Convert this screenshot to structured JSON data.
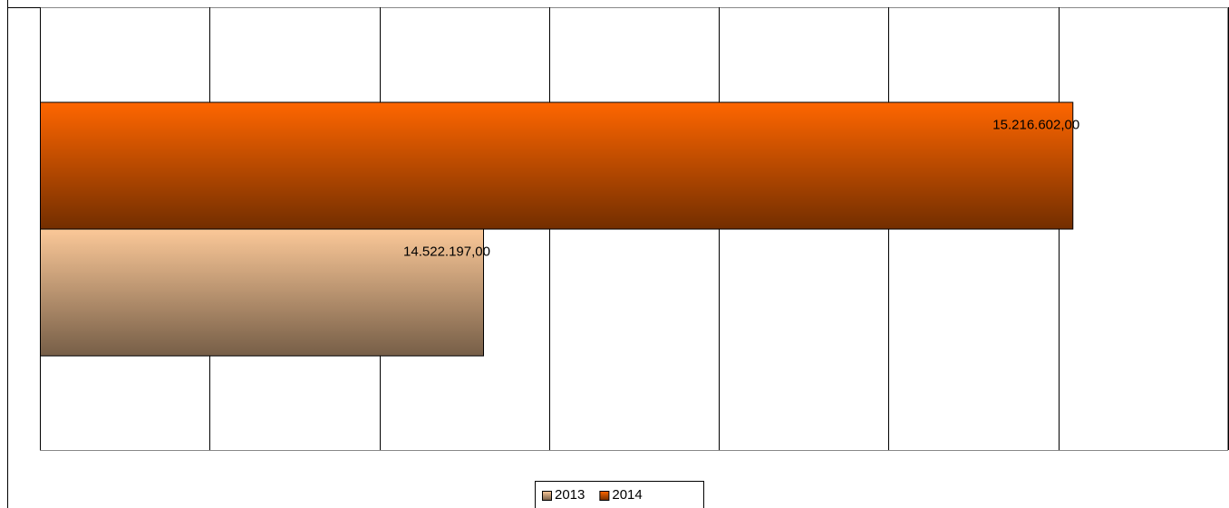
{
  "chart_data": {
    "type": "hbar",
    "categories": [
      null
    ],
    "series": [
      {
        "name": "2013",
        "color": "#fbc898",
        "values": [
          14522197
        ],
        "value_labels": [
          "14.522.197,00"
        ]
      },
      {
        "name": "2014",
        "color": "#ff6600",
        "values": [
          15216602
        ],
        "value_labels": [
          "15.216.602,00"
        ]
      }
    ],
    "xlim": [
      14000000,
      15400000
    ],
    "xticks": [
      14000000,
      14200000,
      14400000,
      14600000,
      14800000,
      15000000,
      15200000,
      15400000
    ],
    "grid": true,
    "legend": "bottom"
  }
}
